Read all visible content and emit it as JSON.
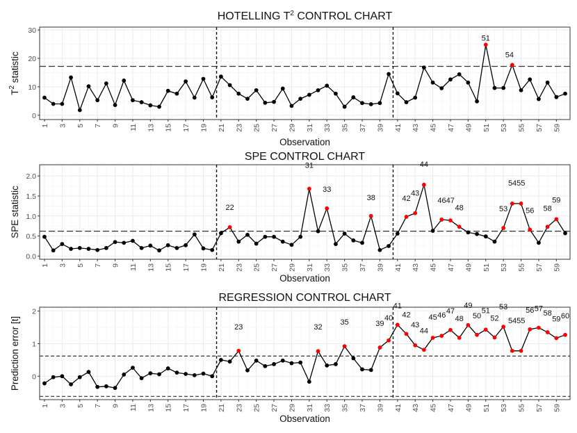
{
  "chart_data": [
    {
      "type": "line",
      "title": "HOTELLING T",
      "title_superscript": "2",
      "title_suffix": " CONTROL CHART",
      "xlabel": "Observation",
      "ylabel": "T",
      "ylabel_superscript": "2",
      "ylabel_suffix": " statistic",
      "xlim": [
        1,
        60
      ],
      "ylim": [
        -1.5,
        31
      ],
      "yticks": [
        0,
        10,
        20,
        30
      ],
      "xticks": [
        1,
        3,
        5,
        7,
        9,
        11,
        13,
        15,
        17,
        19,
        21,
        23,
        25,
        27,
        29,
        31,
        33,
        35,
        37,
        39,
        41,
        43,
        45,
        47,
        49,
        51,
        53,
        55,
        57,
        59
      ],
      "x": [
        1,
        2,
        3,
        4,
        5,
        6,
        7,
        8,
        9,
        10,
        11,
        12,
        13,
        14,
        15,
        16,
        17,
        18,
        19,
        20,
        21,
        22,
        23,
        24,
        25,
        26,
        27,
        28,
        29,
        30,
        31,
        32,
        33,
        34,
        35,
        36,
        37,
        38,
        39,
        40,
        41,
        42,
        43,
        44,
        45,
        46,
        47,
        48,
        49,
        50,
        51,
        52,
        53,
        54,
        55,
        56,
        57,
        58,
        59,
        60
      ],
      "values": [
        6.2,
        4.0,
        4.0,
        13.3,
        1.8,
        10.2,
        5.3,
        11.2,
        3.6,
        12.2,
        5.3,
        4.6,
        3.5,
        3.0,
        8.6,
        7.6,
        11.9,
        6.2,
        12.8,
        6.3,
        13.6,
        10.6,
        7.6,
        5.8,
        8.8,
        4.4,
        4.7,
        9.4,
        3.3,
        5.8,
        7.2,
        8.8,
        10.4,
        7.6,
        3.0,
        6.3,
        4.3,
        3.9,
        4.3,
        14.5,
        7.7,
        4.6,
        6.2,
        16.8,
        11.5,
        9.5,
        12.6,
        14.4,
        11.5,
        4.9,
        24.8,
        9.6,
        9.6,
        17.7,
        8.8,
        12.6,
        5.7,
        11.5,
        6.4,
        7.6
      ],
      "out_of_control": [
        51,
        54
      ],
      "out_of_control_labels": [
        "51",
        "54"
      ],
      "control_limits": [
        17.2
      ],
      "phase_boundaries": [
        20.5,
        40.5
      ]
    },
    {
      "type": "line",
      "title": "SPE CONTROL CHART",
      "xlabel": "Observation",
      "ylabel": "SPE statistic",
      "xlim": [
        1,
        60
      ],
      "ylim": [
        -0.08,
        2.28
      ],
      "yticks": [
        0.0,
        0.5,
        1.0,
        1.5,
        2.0
      ],
      "ytick_labels": [
        "0.0",
        "0.5",
        "1.0",
        "1.5",
        "2.0"
      ],
      "xticks": [
        1,
        3,
        5,
        7,
        9,
        11,
        13,
        15,
        17,
        19,
        21,
        23,
        25,
        27,
        29,
        31,
        33,
        35,
        37,
        39,
        41,
        43,
        45,
        47,
        49,
        51,
        53,
        55,
        57,
        59
      ],
      "x": [
        1,
        2,
        3,
        4,
        5,
        6,
        7,
        8,
        9,
        10,
        11,
        12,
        13,
        14,
        15,
        16,
        17,
        18,
        19,
        20,
        21,
        22,
        23,
        24,
        25,
        26,
        27,
        28,
        29,
        30,
        31,
        32,
        33,
        34,
        35,
        36,
        37,
        38,
        39,
        40,
        41,
        42,
        43,
        44,
        45,
        46,
        47,
        48,
        49,
        50,
        51,
        52,
        53,
        54,
        55,
        56,
        57,
        58,
        59,
        60
      ],
      "values": [
        0.48,
        0.14,
        0.3,
        0.18,
        0.2,
        0.18,
        0.15,
        0.2,
        0.35,
        0.33,
        0.38,
        0.2,
        0.26,
        0.14,
        0.27,
        0.2,
        0.27,
        0.54,
        0.19,
        0.15,
        0.57,
        0.72,
        0.36,
        0.53,
        0.31,
        0.48,
        0.48,
        0.36,
        0.28,
        0.48,
        1.68,
        0.62,
        1.19,
        0.3,
        0.56,
        0.39,
        0.33,
        1.0,
        0.15,
        0.25,
        0.56,
        0.98,
        1.07,
        1.78,
        0.63,
        0.91,
        0.89,
        0.73,
        0.59,
        0.55,
        0.49,
        0.36,
        0.7,
        1.31,
        1.31,
        0.66,
        0.33,
        0.73,
        0.92,
        0.57
      ],
      "out_of_control": [
        22,
        31,
        33,
        38,
        42,
        43,
        44,
        46,
        47,
        48,
        53,
        54,
        55,
        56,
        58,
        59
      ],
      "out_of_control_labels": [
        "22",
        "31",
        "33",
        "38",
        "42",
        "43",
        "44",
        "4647",
        "48",
        "53",
        "5455",
        "56",
        "58",
        "59"
      ],
      "control_limits": [
        0.62
      ],
      "phase_boundaries": [
        20.5,
        40.5
      ]
    },
    {
      "type": "line",
      "title": "REGRESSION CONTROL CHART",
      "xlabel": "Observation",
      "ylabel": "Prediction error [t]",
      "xlim": [
        1,
        60
      ],
      "ylim": [
        -0.72,
        2.12
      ],
      "yticks": [
        0,
        1,
        2
      ],
      "xticks": [
        1,
        3,
        5,
        7,
        9,
        11,
        13,
        15,
        17,
        19,
        21,
        23,
        25,
        27,
        29,
        31,
        33,
        35,
        37,
        39,
        41,
        43,
        45,
        47,
        49,
        51,
        53,
        55,
        57,
        59
      ],
      "x": [
        1,
        2,
        3,
        4,
        5,
        6,
        7,
        8,
        9,
        10,
        11,
        12,
        13,
        14,
        15,
        16,
        17,
        18,
        19,
        20,
        21,
        22,
        23,
        24,
        25,
        26,
        27,
        28,
        29,
        30,
        31,
        32,
        33,
        34,
        35,
        36,
        37,
        38,
        39,
        40,
        41,
        42,
        43,
        44,
        45,
        46,
        47,
        48,
        49,
        50,
        51,
        52,
        53,
        54,
        55,
        56,
        57,
        58,
        59,
        60
      ],
      "values": [
        -0.22,
        -0.03,
        0.0,
        -0.25,
        -0.03,
        0.13,
        -0.33,
        -0.31,
        -0.36,
        0.05,
        0.26,
        -0.06,
        0.09,
        0.06,
        0.24,
        0.11,
        0.07,
        0.03,
        0.08,
        0.0,
        0.5,
        0.45,
        0.78,
        0.18,
        0.48,
        0.31,
        0.37,
        0.48,
        0.4,
        0.42,
        -0.17,
        0.77,
        0.33,
        0.37,
        0.92,
        0.55,
        0.21,
        0.19,
        0.88,
        1.1,
        1.58,
        1.3,
        0.95,
        0.81,
        1.18,
        1.24,
        1.42,
        1.18,
        1.57,
        1.27,
        1.43,
        1.19,
        1.52,
        0.78,
        0.78,
        1.44,
        1.49,
        1.35,
        1.17,
        1.27
      ],
      "out_of_control": [
        23,
        32,
        35,
        39,
        40,
        41,
        42,
        43,
        44,
        45,
        46,
        47,
        48,
        49,
        50,
        51,
        52,
        53,
        54,
        55,
        56,
        57,
        58,
        59,
        60
      ],
      "out_of_control_labels": [
        "23",
        "32",
        "35",
        "39",
        "40",
        "41",
        "42",
        "43",
        "44",
        "45",
        "46",
        "47",
        "48",
        "49",
        "50",
        "51",
        "52",
        "53",
        "5455",
        "56",
        "57",
        "58",
        "59",
        "60"
      ],
      "control_limits": [
        0.62,
        -0.62
      ],
      "phase_boundaries": [
        20.5,
        40.5
      ]
    }
  ]
}
